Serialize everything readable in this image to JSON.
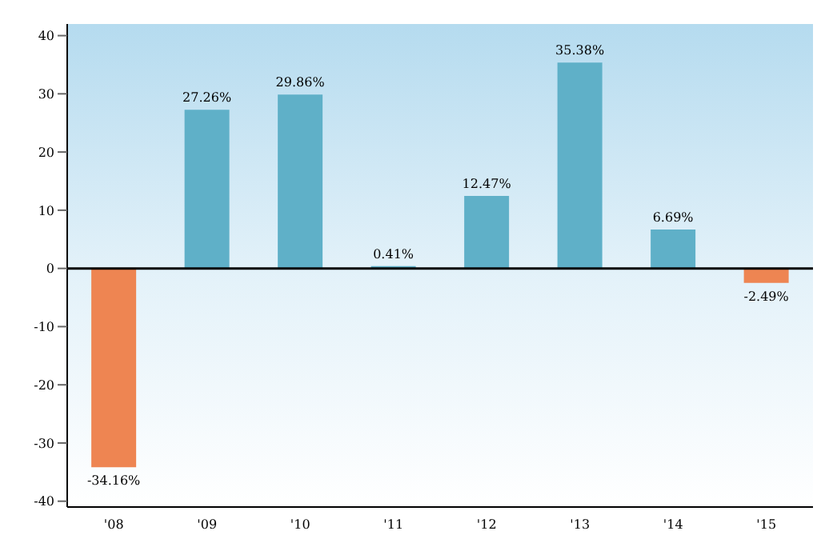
{
  "chart_data": {
    "type": "bar",
    "categories": [
      "'08",
      "'09",
      "'10",
      "'11",
      "'12",
      "'13",
      "'14",
      "'15"
    ],
    "values": [
      -34.16,
      27.26,
      29.86,
      0.41,
      12.47,
      35.38,
      6.69,
      -2.49
    ],
    "colors": [
      "#ee8552",
      "#5fb0c8",
      "#5fb0c8",
      "#5fb0c8",
      "#5fb0c8",
      "#5fb0c8",
      "#5fb0c8",
      "#ee8552"
    ],
    "value_labels": [
      "-34.16%",
      "27.26%",
      "29.86%",
      "0.41%",
      "12.47%",
      "35.38%",
      "6.69%",
      "-2.49%"
    ],
    "ylim": [
      -41,
      42
    ],
    "yticks": [
      -40,
      -30,
      -20,
      -10,
      0,
      10,
      20,
      30,
      40
    ],
    "ref_lines": [
      {
        "axis": "y",
        "value": 0,
        "color": "#000000"
      }
    ],
    "grid": false
  }
}
